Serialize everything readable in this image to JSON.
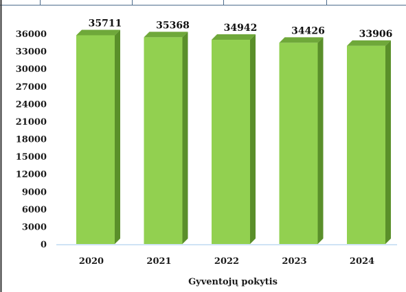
{
  "chart_data": {
    "type": "bar",
    "categories": [
      "2020",
      "2021",
      "2022",
      "2023",
      "2024"
    ],
    "values": [
      35711,
      35368,
      34942,
      34426,
      33906
    ],
    "data_labels": [
      "35711",
      "35368",
      "34942",
      "34426",
      "33906"
    ],
    "xlabel": "Gyventojų pokytis",
    "ylabel": "",
    "ylim": [
      0,
      36000
    ],
    "yticks": [
      "0",
      "3000",
      "6000",
      "9000",
      "12000",
      "15000",
      "18000",
      "21000",
      "24000",
      "27000",
      "30000",
      "33000",
      "36000"
    ],
    "grid": false,
    "legend": "none",
    "style": "3d-column"
  },
  "colors": {
    "bar_front": "#92d050",
    "bar_side": "#5a8f2a",
    "bar_top": "#6fa83a",
    "baseline": "#cfe3f5",
    "frame_line": "#4a6a8a",
    "text": "#1a1a1a"
  }
}
